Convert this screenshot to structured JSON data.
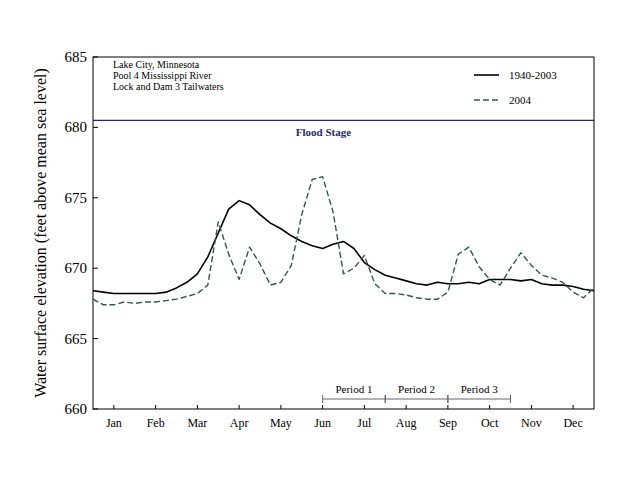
{
  "chart_data": {
    "type": "line",
    "y_label": "Water surface elevation (feet above mean sea level)",
    "annotations": [
      "Lake City, Minnesota",
      "Pool 4 Mississippi River",
      "Lock and Dam 3 Tailwaters"
    ],
    "legend": "top-right",
    "xlim": [
      0,
      12
    ],
    "xticks": [
      {
        "value": 0.5,
        "label": "Jan"
      },
      {
        "value": 1.5,
        "label": "Feb"
      },
      {
        "value": 2.5,
        "label": "Mar"
      },
      {
        "value": 3.5,
        "label": "Apr"
      },
      {
        "value": 4.5,
        "label": "May"
      },
      {
        "value": 5.5,
        "label": "Jun"
      },
      {
        "value": 6.5,
        "label": "Jul"
      },
      {
        "value": 7.5,
        "label": "Aug"
      },
      {
        "value": 8.5,
        "label": "Sep"
      },
      {
        "value": 9.5,
        "label": "Oct"
      },
      {
        "value": 10.5,
        "label": "Nov"
      },
      {
        "value": 11.5,
        "label": "Dec"
      }
    ],
    "ylim": [
      660,
      685
    ],
    "yticks": [
      660,
      665,
      670,
      675,
      680,
      685
    ],
    "grid": false,
    "reference_lines": [
      {
        "label": "Flood Stage",
        "value": 680.5,
        "color": "#1f2a6b"
      }
    ],
    "periods": [
      {
        "label": "Period 1",
        "start": 5.5,
        "end": 7.0
      },
      {
        "label": "Period 2",
        "start": 7.0,
        "end": 8.5
      },
      {
        "label": "Period 3",
        "start": 8.5,
        "end": 10.0
      }
    ],
    "x": [
      0,
      0.25,
      0.5,
      0.75,
      1,
      1.25,
      1.5,
      1.75,
      2,
      2.25,
      2.5,
      2.75,
      3,
      3.25,
      3.5,
      3.75,
      4,
      4.25,
      4.5,
      4.75,
      5,
      5.25,
      5.5,
      5.75,
      6,
      6.25,
      6.5,
      6.75,
      7,
      7.25,
      7.5,
      7.75,
      8,
      8.25,
      8.5,
      8.75,
      9,
      9.25,
      9.5,
      9.75,
      10,
      10.25,
      10.5,
      10.75,
      11,
      11.25,
      11.5,
      11.75,
      12
    ],
    "series": [
      {
        "name": "1940-2003",
        "color": "#000000",
        "line_style": "solid",
        "values": [
          668.4,
          668.3,
          668.2,
          668.2,
          668.2,
          668.2,
          668.2,
          668.3,
          668.6,
          669.0,
          669.6,
          670.8,
          672.5,
          674.2,
          674.8,
          674.5,
          673.8,
          673.2,
          672.8,
          672.3,
          671.9,
          671.6,
          671.4,
          671.7,
          671.9,
          671.4,
          670.4,
          669.9,
          669.5,
          669.3,
          669.1,
          668.9,
          668.8,
          669.0,
          668.9,
          668.9,
          669.0,
          668.9,
          669.2,
          669.2,
          669.2,
          669.1,
          669.2,
          668.9,
          668.8,
          668.8,
          668.7,
          668.5,
          668.4
        ]
      },
      {
        "name": "2004",
        "color": "#2f5a4a",
        "line_style": "dashed",
        "values": [
          667.8,
          667.4,
          667.4,
          667.6,
          667.5,
          667.6,
          667.6,
          667.7,
          667.8,
          668.0,
          668.2,
          668.8,
          673.3,
          671.0,
          669.2,
          671.5,
          670.3,
          668.8,
          669.0,
          670.2,
          673.8,
          676.3,
          676.5,
          674.0,
          669.6,
          670.0,
          670.9,
          668.9,
          668.2,
          668.2,
          668.1,
          667.9,
          667.8,
          667.8,
          668.3,
          671.0,
          671.5,
          670.1,
          669.2,
          668.8,
          670.0,
          671.1,
          670.2,
          669.5,
          669.3,
          669.0,
          668.3,
          667.9,
          668.6
        ]
      }
    ]
  }
}
